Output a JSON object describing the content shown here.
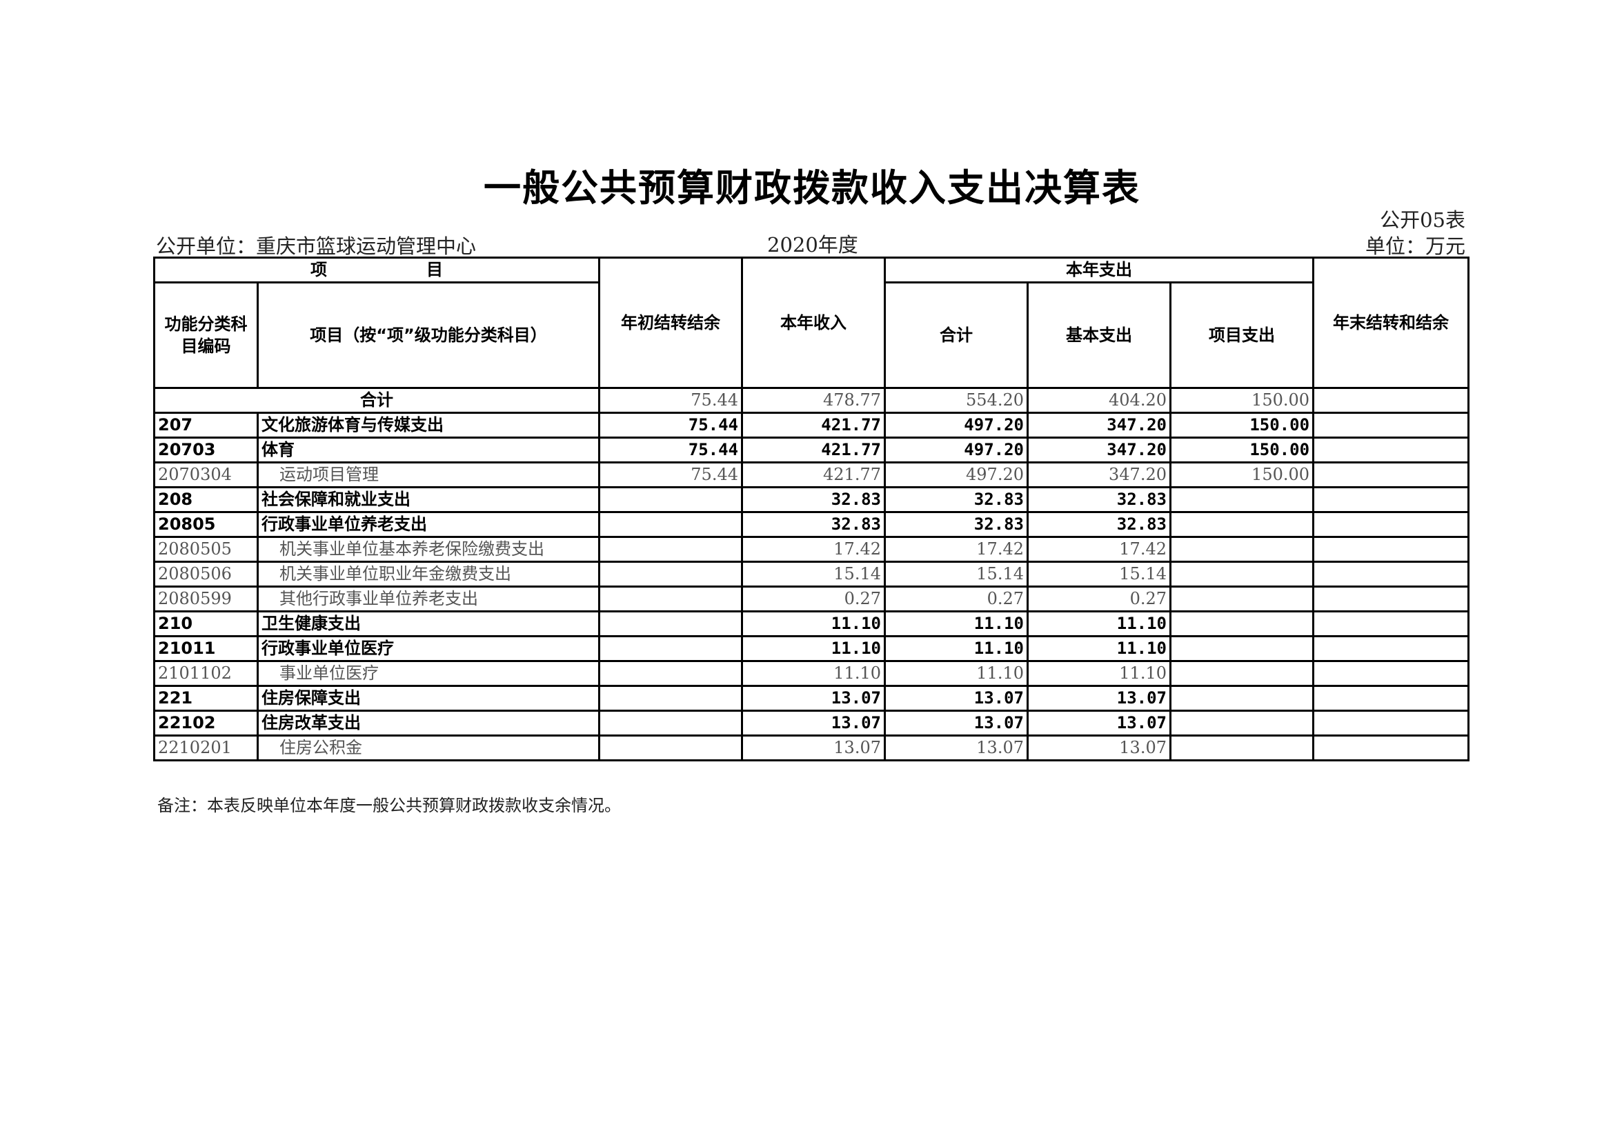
{
  "title": "一般公共预算财政拨款收入支出决算表",
  "table_no": "公开05表",
  "unit_label": "公开单位：重庆市篮球运动管理中心",
  "year": "2020年度",
  "currency": "单位：万元",
  "headers": {
    "item_group": "项　　　　　　目",
    "code": "功能分类科目编码",
    "name": "项目（按“项”级功能分类科目）",
    "opening": "年初结转结余",
    "income": "本年收入",
    "expense_group": "本年支出",
    "total": "合计",
    "basic": "基本支出",
    "project": "项目支出",
    "closing": "年末结转和结余"
  },
  "total_row": {
    "label": "合计",
    "opening": "75.44",
    "income": "478.77",
    "total": "554.20",
    "basic": "404.20",
    "project": "150.00",
    "closing": ""
  },
  "rows": [
    {
      "level": "b",
      "code": "207",
      "name": "文化旅游体育与传媒支出",
      "opening": "75.44",
      "income": "421.77",
      "total": "497.20",
      "basic": "347.20",
      "project": "150.00",
      "closing": ""
    },
    {
      "level": "b",
      "code": "20703",
      "name": "体育",
      "opening": "75.44",
      "income": "421.77",
      "total": "497.20",
      "basic": "347.20",
      "project": "150.00",
      "closing": ""
    },
    {
      "level": "n",
      "code": "2070304",
      "name": "运动项目管理",
      "opening": "75.44",
      "income": "421.77",
      "total": "497.20",
      "basic": "347.20",
      "project": "150.00",
      "closing": ""
    },
    {
      "level": "b",
      "code": "208",
      "name": "社会保障和就业支出",
      "opening": "",
      "income": "32.83",
      "total": "32.83",
      "basic": "32.83",
      "project": "",
      "closing": ""
    },
    {
      "level": "b",
      "code": "20805",
      "name": "行政事业单位养老支出",
      "opening": "",
      "income": "32.83",
      "total": "32.83",
      "basic": "32.83",
      "project": "",
      "closing": ""
    },
    {
      "level": "n",
      "code": "2080505",
      "name": "机关事业单位基本养老保险缴费支出",
      "opening": "",
      "income": "17.42",
      "total": "17.42",
      "basic": "17.42",
      "project": "",
      "closing": ""
    },
    {
      "level": "n",
      "code": "2080506",
      "name": "机关事业单位职业年金缴费支出",
      "opening": "",
      "income": "15.14",
      "total": "15.14",
      "basic": "15.14",
      "project": "",
      "closing": ""
    },
    {
      "level": "n",
      "code": "2080599",
      "name": "其他行政事业单位养老支出",
      "opening": "",
      "income": "0.27",
      "total": "0.27",
      "basic": "0.27",
      "project": "",
      "closing": ""
    },
    {
      "level": "b",
      "code": "210",
      "name": "卫生健康支出",
      "opening": "",
      "income": "11.10",
      "total": "11.10",
      "basic": "11.10",
      "project": "",
      "closing": ""
    },
    {
      "level": "b",
      "code": "21011",
      "name": "行政事业单位医疗",
      "opening": "",
      "income": "11.10",
      "total": "11.10",
      "basic": "11.10",
      "project": "",
      "closing": ""
    },
    {
      "level": "n",
      "code": "2101102",
      "name": "事业单位医疗",
      "opening": "",
      "income": "11.10",
      "total": "11.10",
      "basic": "11.10",
      "project": "",
      "closing": ""
    },
    {
      "level": "b",
      "code": "221",
      "name": "住房保障支出",
      "opening": "",
      "income": "13.07",
      "total": "13.07",
      "basic": "13.07",
      "project": "",
      "closing": ""
    },
    {
      "level": "b",
      "code": "22102",
      "name": "住房改革支出",
      "opening": "",
      "income": "13.07",
      "total": "13.07",
      "basic": "13.07",
      "project": "",
      "closing": ""
    },
    {
      "level": "n",
      "code": "2210201",
      "name": "住房公积金",
      "opening": "",
      "income": "13.07",
      "total": "13.07",
      "basic": "13.07",
      "project": "",
      "closing": ""
    }
  ],
  "note": "备注：本表反映单位本年度一般公共预算财政拨款收支余情况。"
}
